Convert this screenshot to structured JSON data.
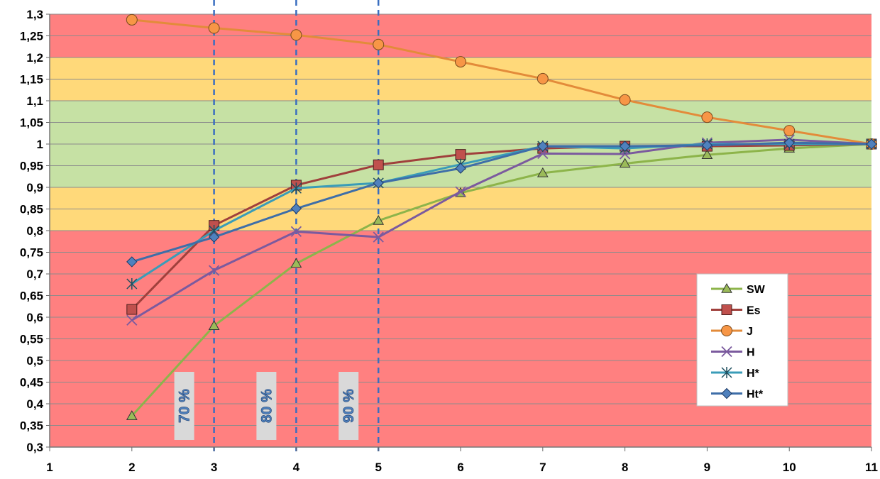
{
  "chart_data": {
    "type": "line",
    "x": [
      1,
      2,
      3,
      4,
      5,
      6,
      7,
      8,
      9,
      10,
      11
    ],
    "xlim": [
      1,
      11
    ],
    "ylim": [
      0.3,
      1.3
    ],
    "x_ticks": [
      "1",
      "2",
      "3",
      "4",
      "5",
      "6",
      "7",
      "8",
      "9",
      "10",
      "11"
    ],
    "y_ticks": [
      "0,3",
      "0,35",
      "0,4",
      "0,45",
      "0,5",
      "0,55",
      "0,6",
      "0,65",
      "0,7",
      "0,75",
      "0,8",
      "0,85",
      "0,9",
      "0,95",
      "1",
      "1,05",
      "1,1",
      "1,15",
      "1,2",
      "1,25",
      "1,3"
    ],
    "grid": true,
    "legend_position": "bottom-right",
    "bands": [
      {
        "from": 0.3,
        "to": 0.8,
        "color": "#ff8080"
      },
      {
        "from": 0.8,
        "to": 0.9,
        "color": "#ffd97a"
      },
      {
        "from": 0.9,
        "to": 1.1,
        "color": "#c6e1a4"
      },
      {
        "from": 1.1,
        "to": 1.2,
        "color": "#ffd97a"
      },
      {
        "from": 1.2,
        "to": 1.3,
        "color": "#ff8080"
      }
    ],
    "reference_lines": [
      {
        "x": 3,
        "label": "70 %"
      },
      {
        "x": 4,
        "label": "80 %"
      },
      {
        "x": 5,
        "label": "90 %"
      }
    ],
    "series": [
      {
        "name": "SW",
        "color": "#8db44a",
        "marker": "triangle",
        "marker_fill": "#9bbb59",
        "x": [
          2,
          3,
          4,
          5,
          6,
          7,
          8,
          9,
          10,
          11
        ],
        "values": [
          0.372,
          0.58,
          0.724,
          0.823,
          0.887,
          0.933,
          0.955,
          0.975,
          0.99,
          1.0
        ]
      },
      {
        "name": "Es",
        "color": "#a0403c",
        "marker": "square",
        "marker_fill": "#c0504d",
        "x": [
          2,
          3,
          4,
          5,
          6,
          7,
          8,
          9,
          10,
          11
        ],
        "values": [
          0.618,
          0.812,
          0.905,
          0.952,
          0.976,
          0.99,
          0.995,
          0.995,
          0.997,
          1.0
        ]
      },
      {
        "name": "J",
        "color": "#e38b3a",
        "marker": "circle",
        "marker_fill": "#f79646",
        "x": [
          2,
          3,
          4,
          5,
          6,
          7,
          8,
          9,
          10,
          11
        ],
        "values": [
          1.287,
          1.268,
          1.252,
          1.23,
          1.19,
          1.151,
          1.102,
          1.062,
          1.031,
          1.0
        ]
      },
      {
        "name": "H",
        "color": "#7b5a9e",
        "marker": "x",
        "marker_fill": "#8064a2",
        "x": [
          2,
          3,
          4,
          5,
          6,
          7,
          8,
          9,
          10,
          11
        ],
        "values": [
          0.593,
          0.708,
          0.798,
          0.785,
          0.89,
          0.978,
          0.977,
          1.003,
          1.01,
          1.0
        ]
      },
      {
        "name": "H*",
        "color": "#3a9cb8",
        "marker": "star",
        "marker_fill": "#4bacc6",
        "x": [
          2,
          3,
          4,
          5,
          6,
          7,
          8,
          9,
          10,
          11
        ],
        "values": [
          0.677,
          0.8,
          0.898,
          0.91,
          0.953,
          0.995,
          0.99,
          1.0,
          1.0,
          1.0
        ]
      },
      {
        "name": "Ht*",
        "color": "#3e6ea8",
        "marker": "diamond",
        "marker_fill": "#4f81bd",
        "x": [
          2,
          3,
          4,
          5,
          6,
          7,
          8,
          9,
          10,
          11
        ],
        "values": [
          0.728,
          0.785,
          0.851,
          0.91,
          0.944,
          0.995,
          0.995,
          0.997,
          1.003,
          1.0
        ]
      }
    ]
  }
}
